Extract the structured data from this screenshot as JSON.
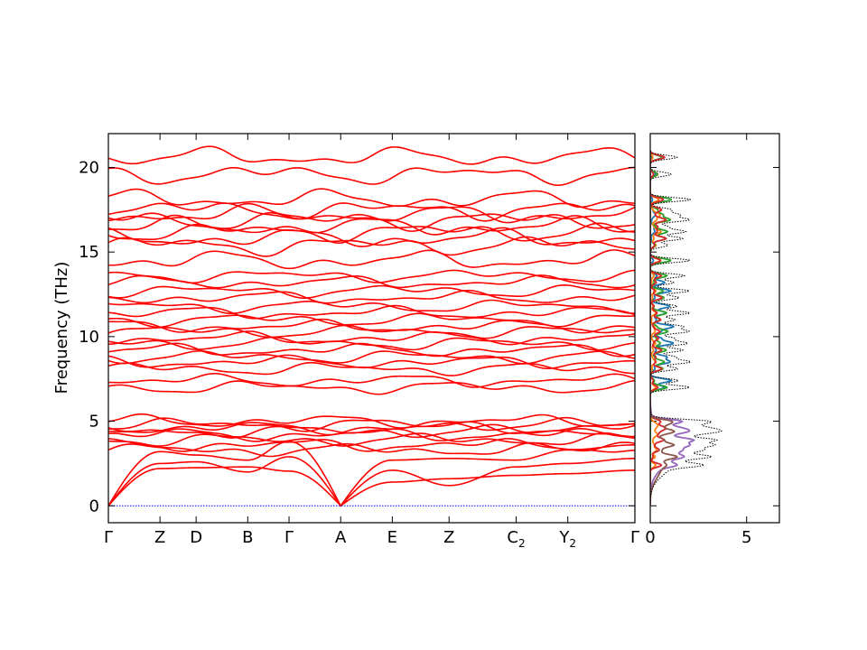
{
  "chart_data": [
    {
      "type": "line",
      "title": "",
      "xlabel": "",
      "ylabel": "Frequency (THz)",
      "ylim": [
        -1,
        22
      ],
      "yticks": [
        0,
        5,
        10,
        15,
        20
      ],
      "grid": false,
      "legend": "none",
      "k_points": [
        {
          "label": "Γ",
          "sub": "",
          "x": 0
        },
        {
          "label": "Z",
          "sub": "",
          "x": 1
        },
        {
          "label": "D",
          "sub": "",
          "x": 1.7
        },
        {
          "label": "B",
          "sub": "",
          "x": 2.7
        },
        {
          "label": "Γ",
          "sub": "",
          "x": 3.5
        },
        {
          "label": "A",
          "sub": "",
          "x": 4.5
        },
        {
          "label": "E",
          "sub": "",
          "x": 5.5
        },
        {
          "label": "Z",
          "sub": "",
          "x": 6.6
        },
        {
          "label": "C",
          "sub": "2",
          "x": 7.9
        },
        {
          "label": "Y",
          "sub": "2",
          "x": 8.9
        },
        {
          "label": "Γ",
          "sub": "",
          "x": 10.2
        }
      ],
      "acoustic_max": [
        2.3,
        3.0,
        4.0
      ],
      "acoustic_shape": [
        [
          0,
          2.2,
          2.25,
          2.3,
          2.05,
          0,
          1.4,
          1.6,
          1.8,
          1.9,
          2.1,
          0
        ],
        [
          0,
          2.5,
          2.6,
          2.0,
          2.9,
          0,
          2.1,
          1.2,
          2.3,
          2.5,
          2.8,
          0
        ],
        [
          0,
          3.2,
          3.0,
          2.7,
          3.8,
          0,
          2.7,
          2.8,
          2.7,
          3.3,
          3.6,
          0
        ]
      ],
      "low_optical_bands": [
        3.3,
        3.6,
        3.9,
        4.2,
        4.4,
        4.6,
        4.8,
        5.0
      ],
      "mid_optical_bands": [
        7.0,
        7.4,
        8.1,
        8.5,
        8.8,
        9.2,
        9.6,
        9.9,
        10.3,
        10.6,
        11.0,
        11.4,
        11.8,
        12.3,
        12.7,
        13.2,
        13.6
      ],
      "high_optical_bands": [
        14.5,
        15.4,
        15.8,
        16.2,
        16.5,
        16.9,
        17.2,
        17.5,
        18.1,
        19.6,
        20.6
      ],
      "zero_line": {
        "y": 0,
        "color": "#0000ff"
      },
      "band_color": "#ff0000"
    },
    {
      "type": "line",
      "title": "",
      "xlabel": "",
      "ylabel": "",
      "xlim": [
        0,
        6.7
      ],
      "xticks": [
        0,
        5
      ],
      "ylim": [
        -1,
        22
      ],
      "legend": "none",
      "series_colors": [
        "#1f77b4",
        "#ff7f0e",
        "#2ca02c",
        "#d62728",
        "#9467bd",
        "#8c564b"
      ],
      "total_color": "#000000"
    }
  ]
}
